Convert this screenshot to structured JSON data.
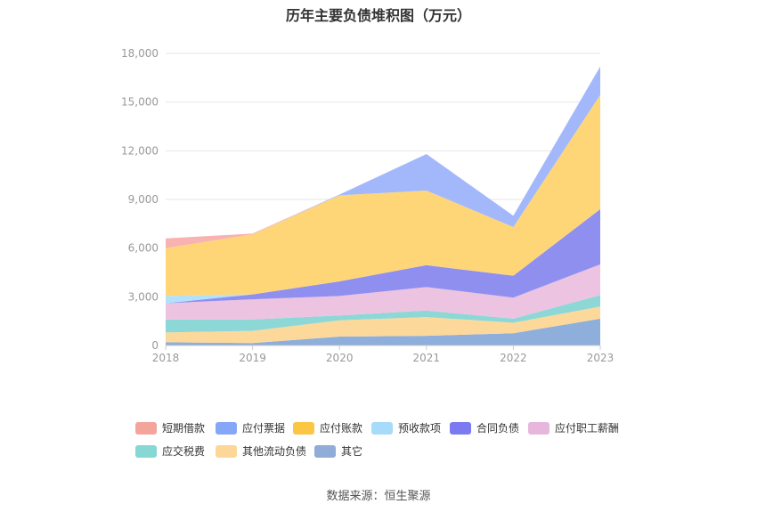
{
  "chart_data": {
    "type": "area",
    "stacked": true,
    "title": "历年主要负债堆积图（万元）",
    "categories": [
      "2018",
      "2019",
      "2020",
      "2021",
      "2022",
      "2023"
    ],
    "ylim": [
      0,
      18000
    ],
    "yticks": [
      "0",
      "3,000",
      "6,000",
      "9,000",
      "12,000",
      "15,000",
      "18,000"
    ],
    "grid": true,
    "legend_position": "bottom",
    "series": [
      {
        "name": "其它",
        "color": "#8eaedb",
        "values": [
          200,
          150,
          550,
          600,
          750,
          1650
        ]
      },
      {
        "name": "其他流动负债",
        "color": "#fcd99a",
        "values": [
          600,
          750,
          1000,
          1150,
          650,
          750
        ]
      },
      {
        "name": "应交税费",
        "color": "#8dd8d6",
        "values": [
          800,
          700,
          300,
          400,
          250,
          700
        ]
      },
      {
        "name": "应付职工薪酬",
        "color": "#ecc3e0",
        "values": [
          1000,
          1250,
          1200,
          1450,
          1300,
          1900
        ]
      },
      {
        "name": "合同负债",
        "color": "#8f8ff0",
        "values": [
          0,
          300,
          900,
          1350,
          1350,
          3400
        ]
      },
      {
        "name": "预收款项",
        "color": "#b2e1fb",
        "values": [
          450,
          0,
          0,
          0,
          0,
          0
        ]
      },
      {
        "name": "应付账款",
        "color": "#fed678",
        "values": [
          2950,
          3700,
          5300,
          4600,
          3000,
          7050
        ]
      },
      {
        "name": "应付票据",
        "color": "#a3b8fb",
        "values": [
          0,
          0,
          50,
          2250,
          700,
          1750
        ]
      },
      {
        "name": "短期借款",
        "color": "#f8b3b1",
        "values": [
          600,
          50,
          0,
          0,
          0,
          0
        ]
      }
    ]
  },
  "legend": [
    {
      "label": "短期借款",
      "color": "#f4a59b"
    },
    {
      "label": "应付票据",
      "color": "#86a6f8"
    },
    {
      "label": "应付账款",
      "color": "#fcc645"
    },
    {
      "label": "预收款项",
      "color": "#a6dbf9"
    },
    {
      "label": "合同负债",
      "color": "#7b7af0"
    },
    {
      "label": "应付职工薪酬",
      "color": "#e6b6dc"
    },
    {
      "label": "应交税费",
      "color": "#87d7d4"
    },
    {
      "label": "其他流动负债",
      "color": "#fdd797"
    },
    {
      "label": "其它",
      "color": "#90acd7"
    }
  ],
  "source": "数据来源：恒生聚源"
}
